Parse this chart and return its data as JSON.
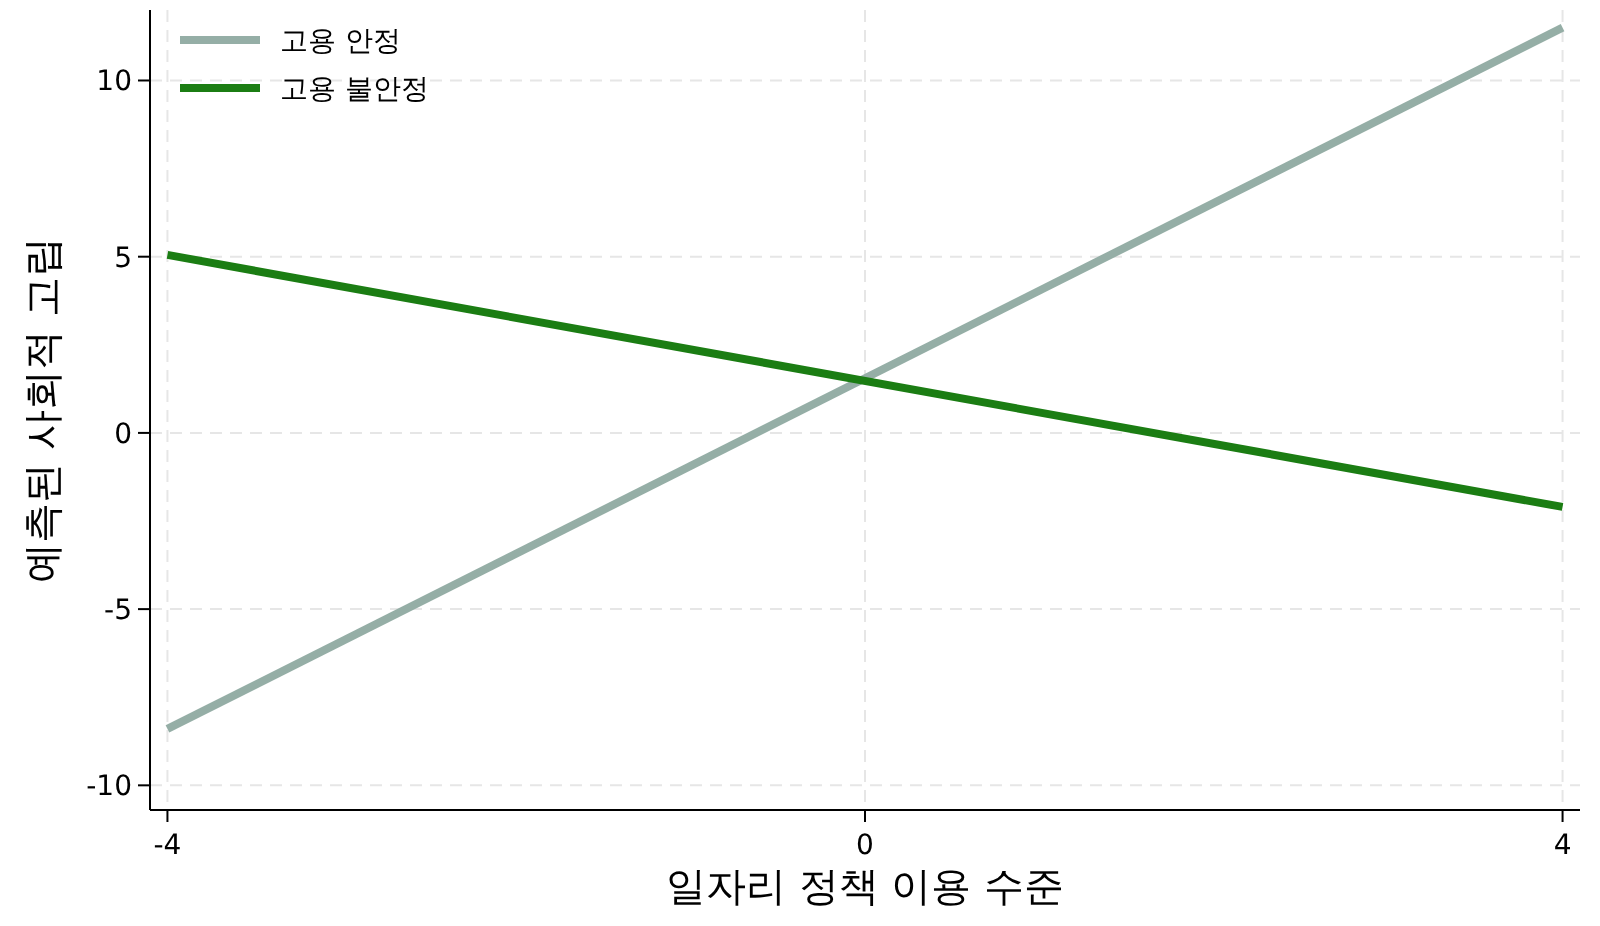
{
  "chart_data": {
    "type": "line",
    "xlabel": "일자리 정책 이용 수준",
    "ylabel": "예측된 사회적 고립",
    "x": [
      -4,
      4
    ],
    "series": [
      {
        "name": "고용 안정",
        "color": "#95aea6",
        "values": [
          -8.4,
          11.5
        ]
      },
      {
        "name": "고용 불안정",
        "color": "#1b7d13",
        "values": [
          5.05,
          -2.1
        ]
      }
    ],
    "xlim": [
      -4.1,
      4.1
    ],
    "ylim": [
      -10.7,
      12
    ],
    "xticks": [
      -4,
      0,
      4
    ],
    "yticks": [
      -10,
      -5,
      0,
      5,
      10
    ],
    "grid": true,
    "legend": "top left",
    "marker": "none",
    "line_style": "solid"
  }
}
